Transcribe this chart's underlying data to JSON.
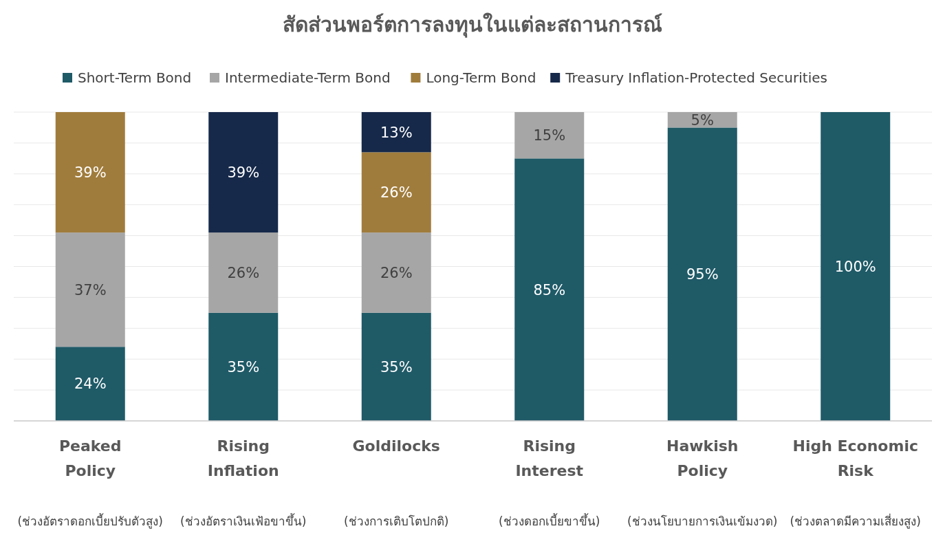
{
  "chart_data": {
    "type": "bar",
    "title": "สัดส่วนพอร์ตการลงทุนในแต่ละสถานการณ์",
    "stacked": true,
    "legend": "top",
    "grid": "y",
    "tick_labels": "x",
    "categories": [
      "Peaked Policy\n(ช่วงอัตราดอกเบี้ยปรับตัวสูง)",
      "Rising Inflation\n(ช่วงอัตราเงินเฟ้อขาขึ้น)",
      "Goldilocks\n(ช่วงการเติบโตปกติ)",
      "Rising Interest\n(ช่วงดอกเบี้ยขาขึ้น)",
      "Hawkish Policy\n(ช่วงนโยบายการเงินเข้มงวด)",
      "High Economic Risk\n(ช่วงตลาดมีความเสี่ยงสูง)"
    ],
    "ylim": [
      0,
      100
    ],
    "yticks": [
      {
        "value": 0,
        "label": null
      },
      {
        "value": 10,
        "label": null
      },
      {
        "value": 20,
        "label": null
      },
      {
        "value": 30,
        "label": null
      },
      {
        "value": 40,
        "label": null
      },
      {
        "value": 50,
        "label": null
      },
      {
        "value": 60,
        "label": null
      },
      {
        "value": 70,
        "label": null
      },
      {
        "value": 80,
        "label": null
      },
      {
        "value": 90,
        "label": null
      },
      {
        "value": 100,
        "label": null
      }
    ],
    "series": [
      {
        "name": "Short-Term Bond",
        "color": "#1f5a67",
        "values": [
          24,
          35,
          35,
          85,
          95,
          100
        ],
        "value_labels": [
          "24%",
          "35%",
          "35%",
          "85%",
          "95%",
          "100%"
        ]
      },
      {
        "name": "Intermediate-Term Bond",
        "color": "#a6a6a6",
        "values": [
          37,
          26,
          26,
          15,
          5,
          null
        ],
        "value_labels": [
          "37%",
          "26%",
          "26%",
          "15%",
          "5%",
          null
        ]
      },
      {
        "name": "Long-Term Bond",
        "color": "#a07c3c",
        "values": [
          39,
          null,
          26,
          null,
          null,
          null
        ],
        "value_labels": [
          "39%",
          null,
          "26%",
          null,
          null,
          null
        ]
      },
      {
        "name": "Treasury Inflation-Protected Securities",
        "color": "#16294a",
        "values": [
          null,
          39,
          13,
          null,
          null,
          null
        ],
        "value_labels": [
          null,
          "39%",
          "13%",
          null,
          null,
          null
        ]
      }
    ]
  }
}
